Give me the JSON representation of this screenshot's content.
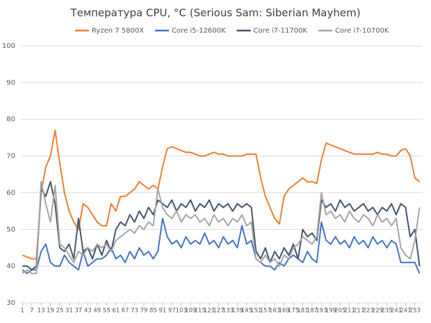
{
  "chart_data": {
    "type": "line",
    "title": "Температура CPU, °C (Serious Sam: Siberian Mayhem)",
    "x": [
      1,
      4,
      7,
      10,
      13,
      16,
      19,
      22,
      25,
      28,
      31,
      34,
      37,
      40,
      43,
      46,
      49,
      52,
      55,
      58,
      61,
      64,
      67,
      70,
      73,
      76,
      79,
      82,
      85,
      88,
      91,
      94,
      97,
      100,
      103,
      106,
      109,
      112,
      115,
      118,
      121,
      124,
      127,
      130,
      133,
      136,
      139,
      142,
      145,
      148,
      151,
      154,
      157,
      160,
      163,
      166,
      169,
      172,
      175,
      178,
      181,
      184,
      187,
      190,
      193,
      196,
      199,
      202,
      205,
      208,
      211,
      214,
      217,
      220,
      223,
      226,
      229,
      232,
      235,
      238,
      241,
      244,
      247,
      250,
      253,
      256
    ],
    "xlim": [
      0,
      258
    ],
    "xticks": [
      1,
      7,
      13,
      19,
      25,
      31,
      37,
      43,
      49,
      55,
      61,
      67,
      73,
      79,
      85,
      91,
      97,
      103,
      109,
      115,
      121,
      127,
      133,
      139,
      145,
      151,
      157,
      163,
      169,
      175,
      181,
      187,
      193,
      199,
      205,
      211,
      217,
      223,
      229,
      235,
      241,
      247,
      253
    ],
    "ylim": [
      30,
      100
    ],
    "yticks": [
      30,
      40,
      50,
      60,
      70,
      80,
      90,
      100
    ],
    "grid": true,
    "legend": "top",
    "series": [
      {
        "name": "Ryzen 7 5800X",
        "color": "#ed7d31",
        "values": [
          43,
          42.5,
          42,
          42,
          60,
          67,
          70,
          77,
          68,
          60,
          55,
          52,
          50,
          57,
          56,
          54,
          52,
          51,
          51,
          57,
          55,
          59,
          59,
          60,
          61,
          63,
          62,
          61,
          62,
          61,
          67,
          72,
          72.5,
          72,
          71.5,
          71,
          71,
          70.5,
          70,
          70,
          70.5,
          71,
          70.5,
          70.5,
          70,
          70,
          70,
          70,
          70.5,
          70.5,
          70.5,
          64,
          59,
          56,
          53,
          51.5,
          59,
          61,
          62,
          63,
          64,
          63,
          63,
          62.5,
          69,
          73.5,
          73,
          72.5,
          72,
          71.5,
          71,
          70.5,
          70.5,
          70.5,
          70.5,
          70.5,
          71,
          70.5,
          70.5,
          70,
          70,
          71.5,
          72,
          70,
          64,
          63
        ]
      },
      {
        "name": "Core i5-12600K",
        "color": "#4472c4",
        "values": [
          39,
          38,
          39,
          39,
          44,
          46,
          41,
          40,
          40,
          43,
          41,
          40,
          39,
          44,
          40,
          41,
          42,
          42,
          43,
          45,
          42,
          43,
          41,
          44,
          42,
          45,
          43,
          44,
          42,
          44,
          53,
          48,
          46,
          47,
          45,
          48,
          46,
          47,
          46,
          49,
          46,
          47,
          45,
          48,
          46,
          47,
          45,
          51,
          46,
          47,
          42,
          41,
          40,
          40,
          39,
          41,
          40,
          42,
          43,
          42,
          41,
          44,
          42,
          41,
          52,
          47,
          46,
          48,
          46,
          47,
          45,
          48,
          46,
          47,
          45,
          48,
          46,
          47,
          45,
          47,
          46,
          41,
          41,
          41,
          41,
          38
        ]
      },
      {
        "name": "Core i7-11700K",
        "color": "#44546a",
        "values": [
          40,
          40,
          39,
          40,
          61,
          59,
          63,
          57,
          45,
          44,
          46,
          42,
          53,
          44,
          45,
          42,
          46,
          43,
          47,
          44,
          50,
          52,
          51,
          54,
          52,
          55,
          53,
          56,
          54,
          58,
          57,
          56,
          58,
          55,
          57,
          56,
          58,
          55,
          57,
          56,
          58,
          55,
          57,
          56,
          57,
          55,
          57,
          56,
          57,
          56,
          44,
          42,
          45,
          41,
          44,
          42,
          45,
          43,
          46,
          42,
          50,
          48,
          49,
          47,
          58,
          56,
          57,
          55,
          58,
          56,
          57,
          55,
          56,
          57,
          55,
          56,
          54,
          56,
          55,
          57,
          54,
          57,
          56,
          48,
          50,
          40
        ]
      },
      {
        "name": "Core i7-10700K",
        "color": "#a5a5a5",
        "values": [
          38,
          39,
          38,
          38,
          63,
          57,
          52,
          62,
          46,
          45,
          43,
          41,
          44,
          43,
          45,
          44,
          46,
          45,
          46,
          44,
          47,
          48,
          49,
          50,
          49,
          51,
          50,
          52,
          51,
          61,
          56,
          54,
          53,
          55,
          52,
          54,
          53,
          54,
          52,
          53,
          51,
          54,
          52,
          53,
          51,
          53,
          52,
          54,
          51,
          52,
          42,
          41,
          43,
          41,
          42,
          40,
          43,
          42,
          45,
          46,
          48,
          47,
          46,
          48,
          60,
          54,
          55,
          53,
          54,
          52,
          55,
          53,
          52,
          54,
          53,
          51,
          54,
          52,
          53,
          51,
          53,
          45,
          43,
          42,
          47,
          56
        ]
      }
    ]
  }
}
